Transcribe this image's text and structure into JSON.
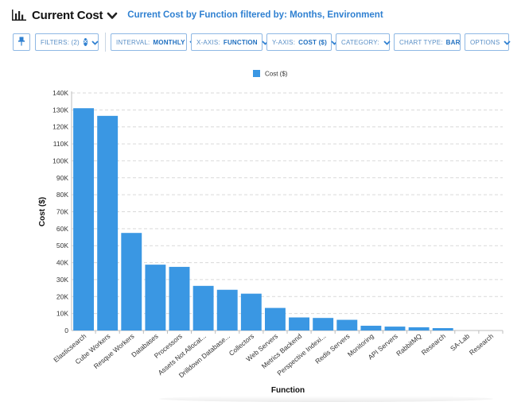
{
  "header": {
    "icon": "bar-chart-icon",
    "title": "Current Cost",
    "subtitle": "Current Cost by Function filtered by: Months, Environment"
  },
  "toolbar": {
    "pin_icon": "pin-icon",
    "filters": {
      "label": "FILTERS: (2)"
    },
    "interval": {
      "label": "INTERVAL:",
      "value": "MONTHLY"
    },
    "xaxis": {
      "label": "X-AXIS:",
      "value": "FUNCTION"
    },
    "yaxis": {
      "label": "Y-AXIS:",
      "value": "COST ($)"
    },
    "category": {
      "label": "CATEGORY:"
    },
    "chart_type": {
      "label": "CHART TYPE:",
      "value": "BAR"
    },
    "options": {
      "label": "OPTIONS"
    }
  },
  "chart_data": {
    "type": "bar",
    "categories": [
      "Elasticsearch",
      "Cube Workers",
      "Resque Workers",
      "Databases",
      "Processors",
      "Assets Not Allocat...",
      "Drilldown Database...",
      "Collectors",
      "Web Servers",
      "Metrics Backend",
      "Perspective Indexi...",
      "Redis Servers",
      "Monitoring",
      "API Servers",
      "RabbitMQ",
      "Research",
      "SA-Lab",
      "Research"
    ],
    "series": [
      {
        "name": "Cost ($)",
        "values": [
          131000,
          126500,
          57500,
          38800,
          37500,
          26300,
          24000,
          21700,
          13300,
          7700,
          7400,
          6300,
          2800,
          2300,
          1900,
          1400,
          0,
          0
        ]
      }
    ],
    "ylabel": "Cost ($)",
    "xlabel": "Function",
    "ylim": [
      0,
      140000
    ],
    "yticks": [
      "0",
      "10K",
      "20K",
      "30K",
      "40K",
      "50K",
      "60K",
      "70K",
      "80K",
      "90K",
      "100K",
      "110K",
      "120K",
      "130K",
      "140K"
    ],
    "legend_position": "top-center",
    "grid": true,
    "bar_color": "#3a97e3"
  }
}
